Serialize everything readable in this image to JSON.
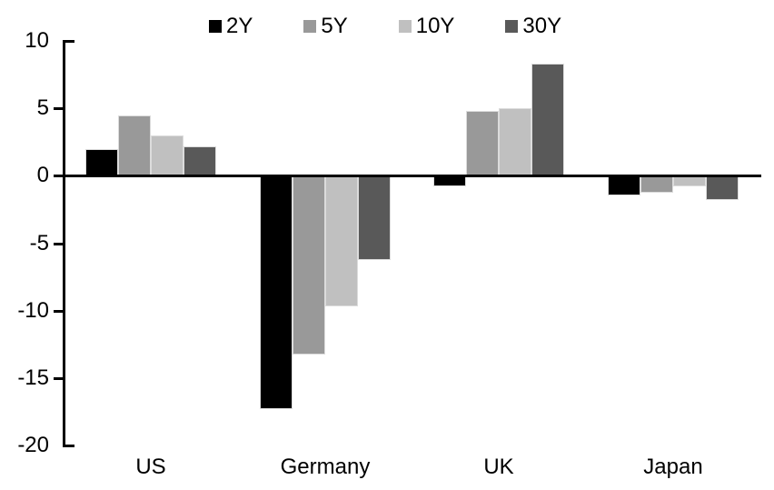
{
  "chart_data": {
    "type": "bar",
    "title": "",
    "xlabel": "",
    "ylabel": "",
    "categories": [
      "US",
      "Germany",
      "UK",
      "Japan"
    ],
    "series": [
      {
        "name": "2Y",
        "color": "#000000",
        "values": [
          2.0,
          -17.3,
          -0.8,
          -1.5
        ]
      },
      {
        "name": "5Y",
        "color": "#999999",
        "values": [
          4.5,
          -13.3,
          4.8,
          -1.3
        ]
      },
      {
        "name": "10Y",
        "color": "#c0c0c0",
        "values": [
          3.0,
          -9.7,
          5.0,
          -0.8
        ]
      },
      {
        "name": "30Y",
        "color": "#595959",
        "values": [
          2.2,
          -6.3,
          8.3,
          -1.8
        ]
      }
    ],
    "ylim": [
      -20,
      10
    ],
    "yticks": [
      10,
      5,
      0,
      -5,
      -10,
      -15,
      -20
    ],
    "legend_position": "top",
    "grid": false,
    "axis_color": "#000000",
    "bar_edge_color": "#dcdcdc",
    "background_color": "#ffffff"
  }
}
